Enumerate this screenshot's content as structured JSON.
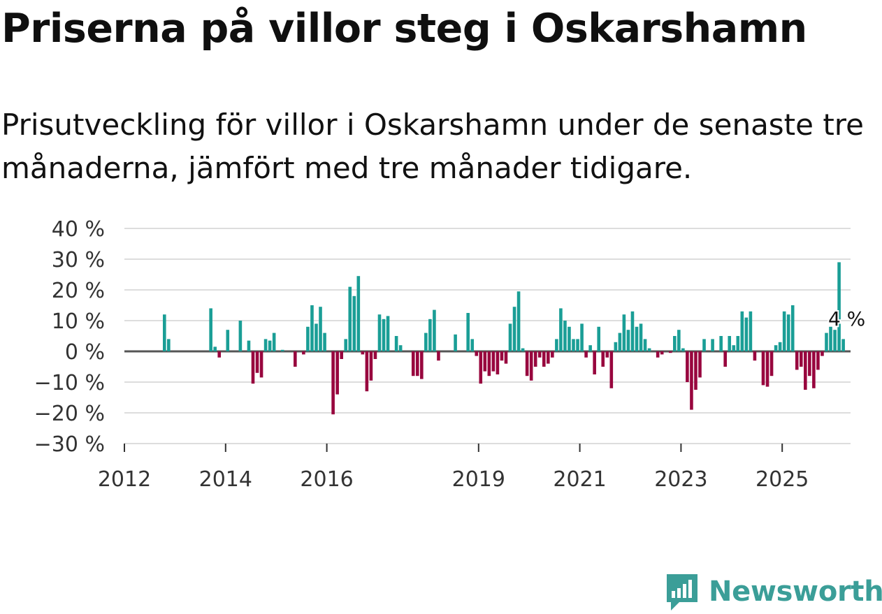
{
  "title": "Priserna på villor steg i Oskarshamn",
  "subtitle": "Prisutveckling för villor i Oskarshamn under de senaste tre månaderna, jämfört med tre månader tidigare.",
  "logo_text": "Newsworthy",
  "colors": {
    "positive": "#1a9e96",
    "negative": "#98063e",
    "grid": "#dddddd",
    "zero": "#555555",
    "logo": "#3b9e98"
  },
  "chart_data": {
    "type": "bar",
    "title": "Priserna på villor steg i Oskarshamn",
    "ylim": [
      -30,
      40
    ],
    "yticks": [
      40,
      30,
      20,
      10,
      0,
      -10,
      -20,
      -30
    ],
    "ytick_labels": [
      "40 %",
      "30 %",
      "20 %",
      "10 %",
      "0 %",
      "−10 %",
      "−20 %",
      "−30 %"
    ],
    "xticks": [
      2012,
      2014,
      2016,
      2019,
      2021,
      2023,
      2025
    ],
    "xtick_labels": [
      "2012",
      "2014",
      "2016",
      "2019",
      "2021",
      "2023",
      "2025"
    ],
    "x_start": 2012.0,
    "month_step": 0.08333,
    "annotation": {
      "text": "4 %",
      "value": 4
    },
    "values": [
      0,
      0,
      0,
      0,
      0,
      0,
      0,
      0,
      0,
      12,
      4,
      0,
      0,
      0,
      0,
      0,
      0,
      0,
      0,
      0,
      14,
      1.5,
      -2,
      0,
      7,
      0,
      0,
      10,
      0,
      3.5,
      -10.5,
      -7,
      -8.5,
      4,
      3.5,
      6,
      0,
      0.5,
      0,
      0,
      -5,
      0,
      -1,
      8,
      15,
      9,
      14.5,
      6,
      0,
      -20.5,
      -14,
      -2.5,
      4,
      21,
      18,
      24.5,
      -1,
      -13,
      -9.5,
      -2.5,
      12,
      10.5,
      11.5,
      0,
      5,
      2,
      0,
      0,
      -8,
      -8,
      -9,
      6,
      10.5,
      13.5,
      -3,
      0,
      0,
      0,
      5.5,
      0,
      0,
      12.5,
      4,
      -1.5,
      -10.5,
      -6.5,
      -8,
      -6.5,
      -7.5,
      -3,
      -4,
      9,
      14.5,
      19.5,
      1,
      -8,
      -9.5,
      -5,
      -2,
      -5,
      -4,
      -2,
      4,
      14,
      10,
      8,
      4,
      4,
      9,
      -2,
      2,
      -7.5,
      8,
      -5,
      -2,
      -12,
      3,
      6,
      12,
      7,
      13,
      8,
      9,
      4,
      1,
      0,
      -2,
      -1,
      0,
      -0.5,
      5,
      7,
      1,
      -10,
      -19,
      -12.5,
      -8.5,
      4,
      0,
      4,
      0,
      5,
      -5,
      5,
      2,
      5,
      13,
      11,
      13,
      -3,
      0,
      -11,
      -11.5,
      -8,
      2,
      3,
      13,
      12,
      15,
      -6,
      -5,
      -12.5,
      -8,
      -12,
      -6,
      -1.5,
      6,
      8,
      7,
      29,
      4
    ]
  }
}
